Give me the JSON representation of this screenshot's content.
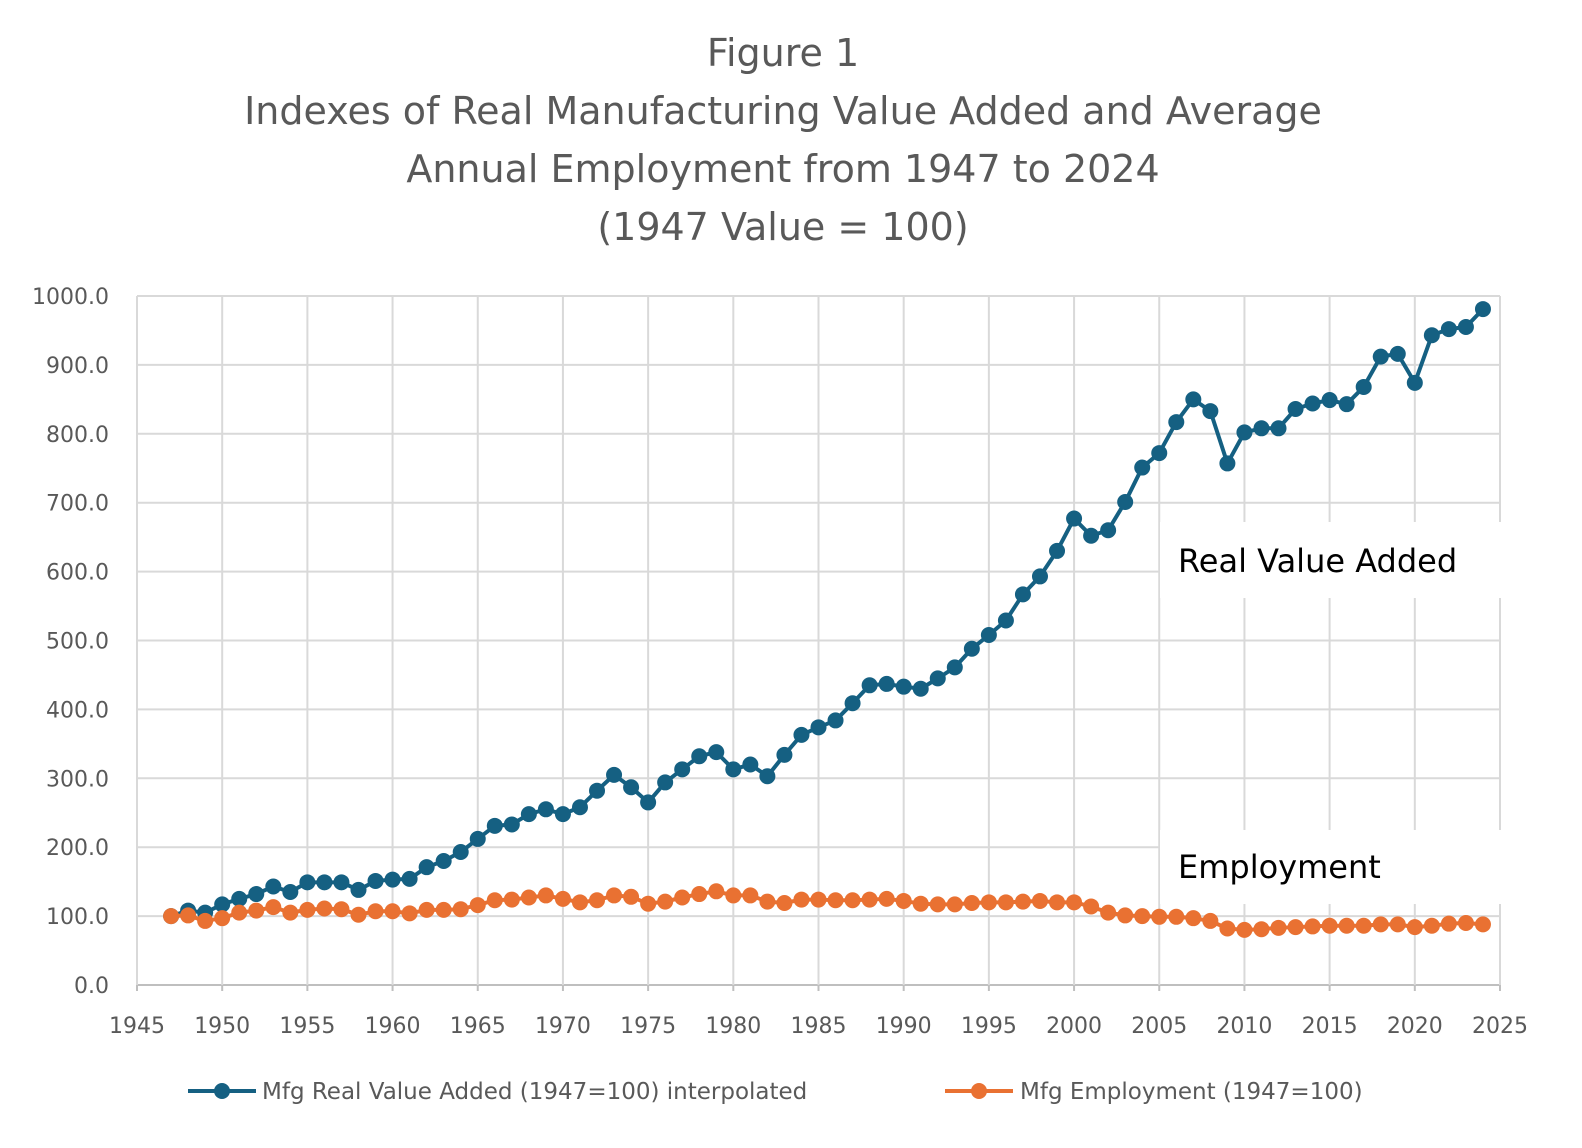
{
  "chart_data": {
    "type": "line",
    "title": [
      "Figure 1",
      "Indexes of Real Manufacturing Value Added and Average",
      "Annual Employment from 1947 to 2024",
      "(1947 Value = 100)"
    ],
    "xlabel": "",
    "ylabel": "",
    "xlim": [
      1945,
      2025
    ],
    "ylim": [
      0,
      1000
    ],
    "x_ticks": [
      1945,
      1950,
      1955,
      1960,
      1965,
      1970,
      1975,
      1980,
      1985,
      1990,
      1995,
      2000,
      2005,
      2010,
      2015,
      2020,
      2025
    ],
    "y_ticks": [
      "0.0",
      "100.0",
      "200.0",
      "300.0",
      "400.0",
      "500.0",
      "600.0",
      "700.0",
      "800.0",
      "900.0",
      "1000.0"
    ],
    "grid": true,
    "legend_position": "bottom",
    "annotations": [
      "Real Value Added",
      "Employment"
    ],
    "x_start": 1947,
    "series": [
      {
        "name": "Mfg Real Value Added (1947=100) interpolated",
        "color": "#156082",
        "values": [
          100,
          108,
          105,
          117,
          125,
          132,
          143,
          135,
          149,
          149,
          149,
          138,
          151,
          153,
          154,
          171,
          180,
          193,
          212,
          231,
          233,
          248,
          255,
          248,
          258,
          282,
          305,
          287,
          265,
          294,
          313,
          332,
          338,
          313,
          320,
          303,
          334,
          363,
          374,
          384,
          409,
          435,
          437,
          433,
          430,
          445,
          461,
          488,
          508,
          529,
          567,
          593,
          630,
          677,
          652,
          660,
          701,
          751,
          772,
          817,
          850,
          833,
          757,
          802,
          808,
          808,
          836,
          844,
          849,
          843,
          868,
          912,
          916,
          874,
          943,
          952,
          955,
          981
        ]
      },
      {
        "name": "Mfg Employment (1947=100)",
        "color": "#E97132",
        "values": [
          100,
          101,
          93,
          97,
          105,
          108,
          113,
          105,
          109,
          111,
          110,
          102,
          107,
          107,
          104,
          109,
          109,
          110,
          116,
          123,
          124,
          127,
          130,
          125,
          120,
          123,
          130,
          128,
          118,
          121,
          127,
          132,
          136,
          130,
          130,
          121,
          119,
          124,
          124,
          123,
          123,
          124,
          125,
          122,
          118,
          117,
          117,
          119,
          120,
          120,
          121,
          122,
          120,
          120,
          114,
          105,
          101,
          100,
          99,
          99,
          97,
          93,
          82,
          80,
          81,
          83,
          84,
          85,
          86,
          86,
          86,
          88,
          88,
          84,
          86,
          89,
          90,
          88
        ]
      }
    ]
  }
}
